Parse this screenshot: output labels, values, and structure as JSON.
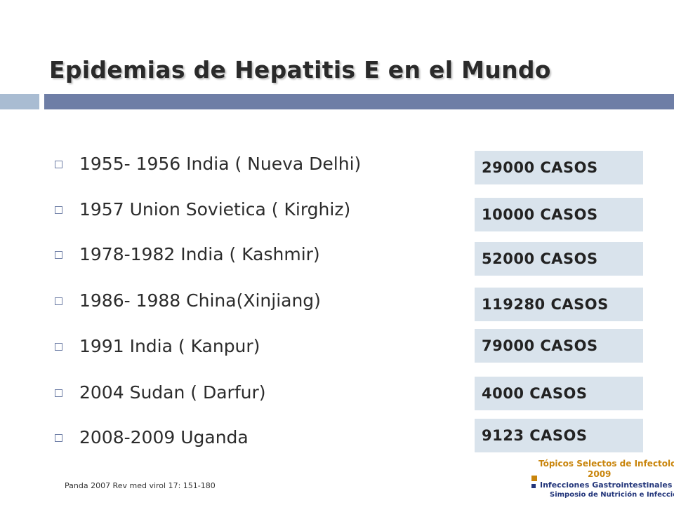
{
  "slide": {
    "title": "Epidemias de  Hepatitis E  en el Mundo",
    "bullets": [
      "1955- 1956 India ( Nueva Delhi)",
      "1957 Union Sovietica ( Kirghiz)",
      "1978-1982 India ( Kashmir)",
      "1986- 1988 China(Xinjiang)",
      "1991 India ( Kanpur)",
      "2004 Sudan ( Darfur)",
      "2008-2009 Uganda"
    ],
    "cases": [
      "29000 CASOS",
      "10000 CASOS",
      "52000 CASOS",
      "119280 CASOS",
      "79000 CASOS",
      "4000 CASOS",
      "9123 CASOS"
    ],
    "citation": "Panda 2007 Rev med virol 17: 151-180",
    "logo": {
      "line1": "Tópicos Selectos de Infectología",
      "line2": "2009",
      "line3": "Infecciones Gastrointestinales y",
      "line4": "Simposio de Nutrición e Infección"
    }
  },
  "colors": {
    "title_bar": "#6e7ea6",
    "title_bar_left": "#a9bcd2",
    "case_box": "#d9e3ec",
    "logo_orange": "#c9850c",
    "logo_blue": "#22357a"
  }
}
